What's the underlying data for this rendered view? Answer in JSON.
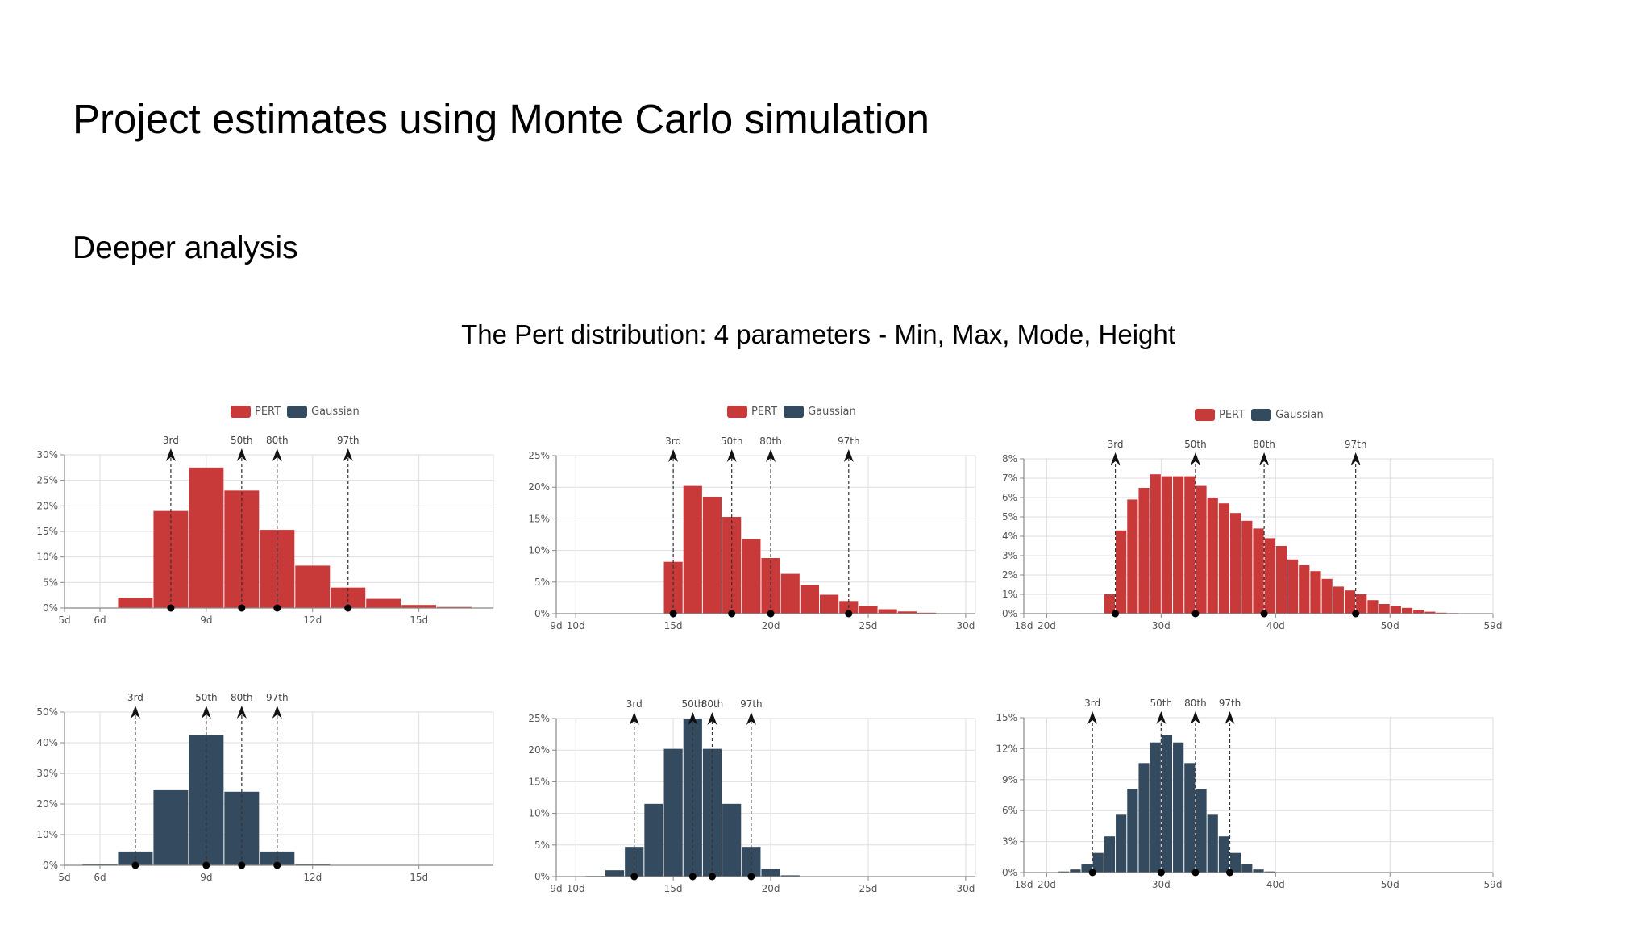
{
  "slide": {
    "title": "Project estimates using Monte Carlo simulation",
    "subtitle": "Deeper analysis",
    "heading": "The Pert distribution: 4 parameters - Min, Max, Mode, Height"
  },
  "colors": {
    "pert": "#C8393A",
    "gaussian": "#344A5E",
    "grid": "#DDDDE6",
    "axis": "#888888"
  },
  "legend": {
    "items": [
      "PERT",
      "Gaussian"
    ]
  },
  "chart_data": [
    {
      "type": "bar",
      "series_name": "PERT",
      "x_ticks": [
        "5d",
        "6d",
        "9d",
        "12d",
        "15d"
      ],
      "x_tick_values": [
        5,
        6,
        9,
        12,
        15
      ],
      "xlim": [
        5,
        17.1
      ],
      "ylim": [
        0,
        30
      ],
      "y_ticks": [
        "0%",
        "5%",
        "10%",
        "15%",
        "20%",
        "25%",
        "30%"
      ],
      "bin_starts": [
        6.5,
        7.5,
        8.5,
        9.5,
        10.5,
        11.5,
        12.5,
        13.5,
        14.5,
        15.5
      ],
      "bin_width": 1,
      "values": [
        2,
        19,
        27.5,
        23,
        15.3,
        8.3,
        4,
        1.8,
        0.6,
        0.2
      ],
      "percentiles": [
        {
          "label": "3rd",
          "x": 8
        },
        {
          "label": "50th",
          "x": 10
        },
        {
          "label": "80th",
          "x": 11
        },
        {
          "label": "97th",
          "x": 13
        }
      ]
    },
    {
      "type": "bar",
      "series_name": "PERT",
      "x_ticks": [
        "9d",
        "10d",
        "15d",
        "20d",
        "25d",
        "30d"
      ],
      "x_tick_values": [
        9,
        10,
        15,
        20,
        25,
        30
      ],
      "xlim": [
        9,
        30.5
      ],
      "ylim": [
        0,
        25
      ],
      "y_ticks": [
        "0%",
        "5%",
        "10%",
        "15%",
        "20%",
        "25%"
      ],
      "bin_starts": [
        14.5,
        15.5,
        16.5,
        17.5,
        18.5,
        19.5,
        20.5,
        21.5,
        22.5,
        23.5,
        24.5,
        25.5,
        26.5,
        27.5,
        28.5,
        29.5
      ],
      "bin_width": 1,
      "values": [
        8.2,
        20.2,
        18.5,
        15.3,
        11.8,
        8.8,
        6.3,
        4.5,
        3,
        2,
        1.2,
        0.7,
        0.35,
        0.15,
        0.06,
        0.02
      ],
      "percentiles": [
        {
          "label": "3rd",
          "x": 15
        },
        {
          "label": "50th",
          "x": 18
        },
        {
          "label": "80th",
          "x": 20
        },
        {
          "label": "97th",
          "x": 24
        }
      ]
    },
    {
      "type": "bar",
      "series_name": "PERT",
      "x_ticks": [
        "18d",
        "20d",
        "30d",
        "40d",
        "50d",
        "59d"
      ],
      "x_tick_values": [
        18,
        20,
        30,
        40,
        50,
        59
      ],
      "xlim": [
        18,
        59
      ],
      "ylim": [
        0,
        8
      ],
      "y_ticks": [
        "0%",
        "1%",
        "2%",
        "3%",
        "4%",
        "5%",
        "6%",
        "7%",
        "8%"
      ],
      "bin_starts": [
        25,
        26,
        27,
        28,
        29,
        30,
        31,
        32,
        33,
        34,
        35,
        36,
        37,
        38,
        39,
        40,
        41,
        42,
        43,
        44,
        45,
        46,
        47,
        48,
        49,
        50,
        51,
        52,
        53,
        54,
        55,
        56
      ],
      "bin_width": 1,
      "values": [
        1,
        4.3,
        5.9,
        6.5,
        7.2,
        7.1,
        7.1,
        7.1,
        6.6,
        6,
        5.7,
        5.2,
        4.8,
        4.4,
        3.9,
        3.5,
        2.8,
        2.5,
        2.2,
        1.8,
        1.4,
        1.2,
        1,
        0.7,
        0.5,
        0.4,
        0.3,
        0.2,
        0.1,
        0.05,
        0.03,
        0.02
      ],
      "percentiles": [
        {
          "label": "3rd",
          "x": 26
        },
        {
          "label": "50th",
          "x": 33
        },
        {
          "label": "80th",
          "x": 39
        },
        {
          "label": "97th",
          "x": 47
        }
      ]
    },
    {
      "type": "bar",
      "series_name": "Gaussian",
      "x_ticks": [
        "5d",
        "6d",
        "9d",
        "12d",
        "15d"
      ],
      "x_tick_values": [
        5,
        6,
        9,
        12,
        15
      ],
      "xlim": [
        5,
        17.1
      ],
      "ylim": [
        0,
        50
      ],
      "y_ticks": [
        "0%",
        "10%",
        "20%",
        "30%",
        "40%",
        "50%"
      ],
      "bin_starts": [
        5.5,
        6.5,
        7.5,
        8.5,
        9.5,
        10.5,
        11.5
      ],
      "bin_width": 1,
      "values": [
        0.3,
        4.5,
        24.5,
        42.5,
        24,
        4.5,
        0.3
      ],
      "percentiles": [
        {
          "label": "3rd",
          "x": 7
        },
        {
          "label": "50th",
          "x": 9
        },
        {
          "label": "80th",
          "x": 10
        },
        {
          "label": "97th",
          "x": 11
        }
      ]
    },
    {
      "type": "bar",
      "series_name": "Gaussian",
      "x_ticks": [
        "9d",
        "10d",
        "15d",
        "20d",
        "25d",
        "30d"
      ],
      "x_tick_values": [
        9,
        10,
        15,
        20,
        25,
        30
      ],
      "xlim": [
        9,
        30.5
      ],
      "ylim": [
        0,
        25
      ],
      "y_ticks": [
        "0%",
        "5%",
        "10%",
        "15%",
        "20%",
        "25%"
      ],
      "bin_starts": [
        10.5,
        11.5,
        12.5,
        13.5,
        14.5,
        15.5,
        16.5,
        17.5,
        18.5,
        19.5,
        20.5
      ],
      "bin_width": 1,
      "values": [
        0.1,
        1,
        4.7,
        11.5,
        20.2,
        25,
        20.2,
        11.5,
        4.7,
        1.2,
        0.2
      ],
      "percentiles": [
        {
          "label": "3rd",
          "x": 13
        },
        {
          "label": "50th",
          "x": 16
        },
        {
          "label": "80th",
          "x": 17
        },
        {
          "label": "97th",
          "x": 19
        }
      ]
    },
    {
      "type": "bar",
      "series_name": "Gaussian",
      "x_ticks": [
        "18d",
        "20d",
        "30d",
        "40d",
        "50d",
        "59d"
      ],
      "x_tick_values": [
        18,
        20,
        30,
        40,
        50,
        59
      ],
      "xlim": [
        18,
        59
      ],
      "ylim": [
        0,
        15
      ],
      "y_ticks": [
        "0%",
        "3%",
        "6%",
        "9%",
        "12%",
        "15%"
      ],
      "bin_starts": [
        21,
        22,
        23,
        24,
        25,
        26,
        27,
        28,
        29,
        30,
        31,
        32,
        33,
        34,
        35,
        36,
        37,
        38,
        39
      ],
      "bin_width": 1,
      "values": [
        0.1,
        0.3,
        0.8,
        1.9,
        3.5,
        5.6,
        8.1,
        10.6,
        12.6,
        13.3,
        12.6,
        10.6,
        8.1,
        5.6,
        3.5,
        1.9,
        0.8,
        0.3,
        0.1
      ],
      "percentiles": [
        {
          "label": "3rd",
          "x": 24
        },
        {
          "label": "50th",
          "x": 30
        },
        {
          "label": "80th",
          "x": 33
        },
        {
          "label": "97th",
          "x": 36
        }
      ]
    }
  ]
}
